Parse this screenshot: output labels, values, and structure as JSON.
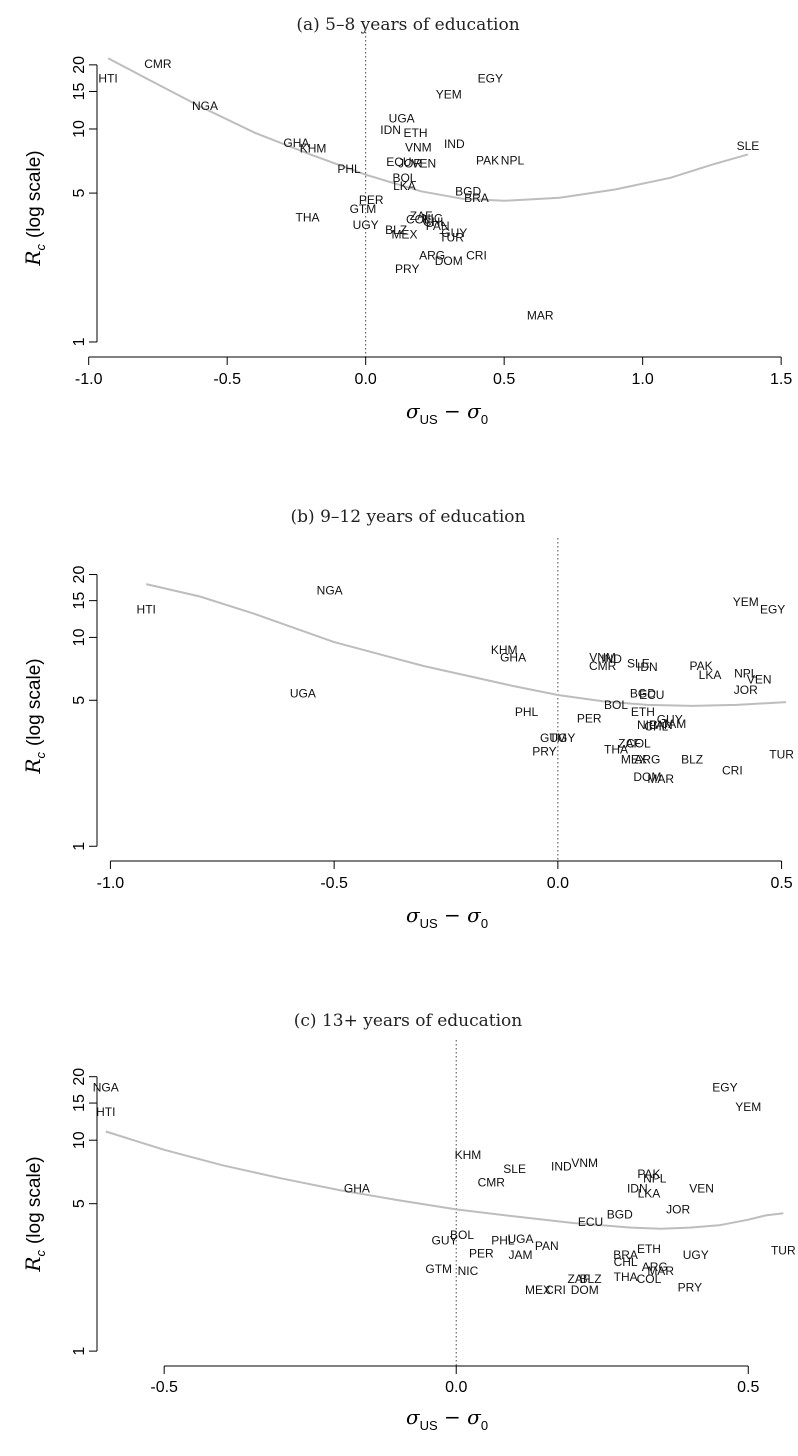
{
  "figure": {
    "y_label": {
      "sym": "R",
      "sub": "c",
      "rest": "(log scale)"
    },
    "x_label": {
      "sym1": "σ",
      "sub1": "US",
      "op": " − ",
      "sym2": "σ",
      "sub2": "0"
    }
  },
  "chart_data": [
    {
      "type": "scatter",
      "title": "(a) 5–8 years of education",
      "xlim": [
        -0.97,
        1.55
      ],
      "ylim": [
        0.85,
        24
      ],
      "y_scale": "log",
      "x_ticks": [
        -1.0,
        -0.5,
        0.0,
        0.5,
        1.0,
        1.5
      ],
      "x_tick_labels": [
        "-1.0",
        "-0.5",
        "0.0",
        "0.5",
        "1.0",
        "1.5"
      ],
      "y_ticks": [
        1,
        5,
        10,
        15,
        20
      ],
      "y_tick_labels": [
        "1",
        "5",
        "10",
        "15",
        "20"
      ],
      "reference_line_x": 0,
      "points": [
        {
          "label": "HTI",
          "x": -0.93,
          "y": 17.3
        },
        {
          "label": "CMR",
          "x": -0.75,
          "y": 20.2
        },
        {
          "label": "NGA",
          "x": -0.58,
          "y": 12.8
        },
        {
          "label": "GHA",
          "x": -0.25,
          "y": 8.6
        },
        {
          "label": "KHM",
          "x": -0.19,
          "y": 8.1
        },
        {
          "label": "THA",
          "x": -0.21,
          "y": 3.85
        },
        {
          "label": "PHL",
          "x": -0.06,
          "y": 6.5
        },
        {
          "label": "PER",
          "x": 0.02,
          "y": 4.65
        },
        {
          "label": "GTM",
          "x": -0.01,
          "y": 4.2
        },
        {
          "label": "UGY",
          "x": 0.0,
          "y": 3.55
        },
        {
          "label": "BLZ",
          "x": 0.11,
          "y": 3.35
        },
        {
          "label": "MEX",
          "x": 0.14,
          "y": 3.2
        },
        {
          "label": "UGA",
          "x": 0.13,
          "y": 11.2
        },
        {
          "label": "IDN",
          "x": 0.09,
          "y": 9.9
        },
        {
          "label": "ETH",
          "x": 0.18,
          "y": 9.6
        },
        {
          "label": "VNM",
          "x": 0.19,
          "y": 8.2
        },
        {
          "label": "IND",
          "x": 0.32,
          "y": 8.5
        },
        {
          "label": "ECU",
          "x": 0.12,
          "y": 7.0
        },
        {
          "label": "JOR",
          "x": 0.16,
          "y": 6.9
        },
        {
          "label": "VEN",
          "x": 0.21,
          "y": 6.9
        },
        {
          "label": "BOL",
          "x": 0.14,
          "y": 5.9
        },
        {
          "label": "LKA",
          "x": 0.14,
          "y": 5.4
        },
        {
          "label": "ZAF",
          "x": 0.2,
          "y": 3.9
        },
        {
          "label": "COL",
          "x": 0.19,
          "y": 3.75
        },
        {
          "label": "NIC",
          "x": 0.24,
          "y": 3.8
        },
        {
          "label": "CHL",
          "x": 0.25,
          "y": 3.65
        },
        {
          "label": "PAN",
          "x": 0.26,
          "y": 3.5
        },
        {
          "label": "GUY",
          "x": 0.32,
          "y": 3.25
        },
        {
          "label": "TUR",
          "x": 0.31,
          "y": 3.1
        },
        {
          "label": "ARG",
          "x": 0.24,
          "y": 2.55
        },
        {
          "label": "DOM",
          "x": 0.3,
          "y": 2.4
        },
        {
          "label": "CRI",
          "x": 0.4,
          "y": 2.55
        },
        {
          "label": "PRY",
          "x": 0.15,
          "y": 2.2
        },
        {
          "label": "MAR",
          "x": 0.63,
          "y": 1.33
        },
        {
          "label": "YEM",
          "x": 0.3,
          "y": 14.5
        },
        {
          "label": "EGY",
          "x": 0.45,
          "y": 17.3
        },
        {
          "label": "PAK",
          "x": 0.44,
          "y": 7.1
        },
        {
          "label": "NPL",
          "x": 0.53,
          "y": 7.1
        },
        {
          "label": "BGD",
          "x": 0.37,
          "y": 5.1
        },
        {
          "label": "BRA",
          "x": 0.4,
          "y": 4.75
        },
        {
          "label": "SLE",
          "x": 1.38,
          "y": 8.3
        }
      ],
      "trend": {
        "x": [
          -0.93,
          -0.8,
          -0.6,
          -0.4,
          -0.2,
          0.0,
          0.2,
          0.35,
          0.5,
          0.7,
          0.9,
          1.1,
          1.25,
          1.38
        ],
        "y": [
          21.5,
          17.5,
          12.8,
          9.6,
          7.6,
          6.1,
          5.1,
          4.7,
          4.6,
          4.75,
          5.2,
          5.9,
          6.8,
          7.6
        ]
      }
    },
    {
      "type": "scatter",
      "title": "(b) 9–12 years of education",
      "xlim": [
        -1.03,
        0.53
      ],
      "ylim": [
        0.85,
        24
      ],
      "y_scale": "log",
      "x_ticks": [
        -1.0,
        -0.5,
        0.0,
        0.5
      ],
      "x_tick_labels": [
        "-1.0",
        "-0.5",
        "0.0",
        "0.5"
      ],
      "y_ticks": [
        1,
        5,
        10,
        15,
        20
      ],
      "y_tick_labels": [
        "1",
        "5",
        "10",
        "15",
        "20"
      ],
      "reference_line_x": 0,
      "points": [
        {
          "label": "HTI",
          "x": -0.92,
          "y": 13.6
        },
        {
          "label": "NGA",
          "x": -0.51,
          "y": 16.8
        },
        {
          "label": "KHM",
          "x": -0.12,
          "y": 8.7
        },
        {
          "label": "GHA",
          "x": -0.1,
          "y": 8.0
        },
        {
          "label": "UGA",
          "x": -0.57,
          "y": 5.4
        },
        {
          "label": "PHL",
          "x": -0.07,
          "y": 4.4
        },
        {
          "label": "GTM",
          "x": -0.01,
          "y": 3.3
        },
        {
          "label": "UGY",
          "x": 0.01,
          "y": 3.3
        },
        {
          "label": "PRY",
          "x": -0.03,
          "y": 2.85
        },
        {
          "label": "PER",
          "x": 0.07,
          "y": 4.1
        },
        {
          "label": "BOL",
          "x": 0.13,
          "y": 4.75
        },
        {
          "label": "ETH",
          "x": 0.19,
          "y": 4.4
        },
        {
          "label": "BGD",
          "x": 0.19,
          "y": 5.4
        },
        {
          "label": "ECU",
          "x": 0.21,
          "y": 5.3
        },
        {
          "label": "VNM",
          "x": 0.1,
          "y": 8.0
        },
        {
          "label": "IND",
          "x": 0.12,
          "y": 7.9
        },
        {
          "label": "CMR",
          "x": 0.1,
          "y": 7.3
        },
        {
          "label": "SLE",
          "x": 0.18,
          "y": 7.5
        },
        {
          "label": "IDN",
          "x": 0.2,
          "y": 7.2
        },
        {
          "label": "PAK",
          "x": 0.32,
          "y": 7.3
        },
        {
          "label": "LKA",
          "x": 0.34,
          "y": 6.6
        },
        {
          "label": "NPL",
          "x": 0.42,
          "y": 6.7
        },
        {
          "label": "VEN",
          "x": 0.45,
          "y": 6.3
        },
        {
          "label": "JOR",
          "x": 0.42,
          "y": 5.6
        },
        {
          "label": "YEM",
          "x": 0.42,
          "y": 14.8
        },
        {
          "label": "EGY",
          "x": 0.48,
          "y": 13.6
        },
        {
          "label": "NIC",
          "x": 0.2,
          "y": 3.8
        },
        {
          "label": "PAN",
          "x": 0.23,
          "y": 3.8
        },
        {
          "label": "CHL",
          "x": 0.22,
          "y": 3.75
        },
        {
          "label": "JAM",
          "x": 0.26,
          "y": 3.85
        },
        {
          "label": "GUY",
          "x": 0.25,
          "y": 4.05
        },
        {
          "label": "THA",
          "x": 0.13,
          "y": 2.9
        },
        {
          "label": "ZAF",
          "x": 0.16,
          "y": 3.1
        },
        {
          "label": "COL",
          "x": 0.18,
          "y": 3.1
        },
        {
          "label": "MEX",
          "x": 0.17,
          "y": 2.6
        },
        {
          "label": "ARG",
          "x": 0.2,
          "y": 2.6
        },
        {
          "label": "BLZ",
          "x": 0.3,
          "y": 2.6
        },
        {
          "label": "DOM",
          "x": 0.2,
          "y": 2.15
        },
        {
          "label": "MAR",
          "x": 0.23,
          "y": 2.1
        },
        {
          "label": "CRI",
          "x": 0.39,
          "y": 2.3
        },
        {
          "label": "TUR",
          "x": 0.5,
          "y": 2.75
        }
      ],
      "trend": {
        "x": [
          -0.92,
          -0.8,
          -0.68,
          -0.5,
          -0.3,
          -0.1,
          0.0,
          0.1,
          0.2,
          0.3,
          0.4,
          0.51
        ],
        "y": [
          18.0,
          15.7,
          13.0,
          9.5,
          7.3,
          5.85,
          5.3,
          4.95,
          4.75,
          4.7,
          4.75,
          4.9
        ]
      }
    },
    {
      "type": "scatter",
      "title": "(c) 13+ years of education",
      "xlim": [
        -0.615,
        0.58
      ],
      "ylim": [
        0.85,
        24
      ],
      "y_scale": "log",
      "x_ticks": [
        -0.5,
        0.0,
        0.5
      ],
      "x_tick_labels": [
        "-0.5",
        "0.0",
        "0.5"
      ],
      "y_ticks": [
        1,
        5,
        10,
        15,
        20
      ],
      "y_tick_labels": [
        "1",
        "5",
        "10",
        "15",
        "20"
      ],
      "reference_line_x": 0,
      "points": [
        {
          "label": "NGA",
          "x": -0.6,
          "y": 17.8
        },
        {
          "label": "HTI",
          "x": -0.6,
          "y": 13.6
        },
        {
          "label": "GHA",
          "x": -0.17,
          "y": 5.9
        },
        {
          "label": "KHM",
          "x": 0.02,
          "y": 8.5
        },
        {
          "label": "SLE",
          "x": 0.1,
          "y": 7.3
        },
        {
          "label": "CMR",
          "x": 0.06,
          "y": 6.3
        },
        {
          "label": "IND",
          "x": 0.18,
          "y": 7.5
        },
        {
          "label": "VNM",
          "x": 0.22,
          "y": 7.8
        },
        {
          "label": "PAK",
          "x": 0.33,
          "y": 6.9
        },
        {
          "label": "NPL",
          "x": 0.34,
          "y": 6.6
        },
        {
          "label": "IDN",
          "x": 0.31,
          "y": 5.9
        },
        {
          "label": "LKA",
          "x": 0.33,
          "y": 5.6
        },
        {
          "label": "VEN",
          "x": 0.42,
          "y": 5.9
        },
        {
          "label": "JOR",
          "x": 0.38,
          "y": 4.7
        },
        {
          "label": "BGD",
          "x": 0.28,
          "y": 4.45
        },
        {
          "label": "ECU",
          "x": 0.23,
          "y": 4.1
        },
        {
          "label": "EGY",
          "x": 0.46,
          "y": 17.8
        },
        {
          "label": "YEM",
          "x": 0.5,
          "y": 14.4
        },
        {
          "label": "BOL",
          "x": 0.01,
          "y": 3.55
        },
        {
          "label": "GUY",
          "x": -0.02,
          "y": 3.35
        },
        {
          "label": "PHL",
          "x": 0.08,
          "y": 3.35
        },
        {
          "label": "UGA",
          "x": 0.11,
          "y": 3.4
        },
        {
          "label": "PAN",
          "x": 0.155,
          "y": 3.15
        },
        {
          "label": "PER",
          "x": 0.043,
          "y": 2.9
        },
        {
          "label": "JAM",
          "x": 0.11,
          "y": 2.85
        },
        {
          "label": "GTM",
          "x": -0.03,
          "y": 2.45
        },
        {
          "label": "NIC",
          "x": 0.02,
          "y": 2.4
        },
        {
          "label": "ETH",
          "x": 0.33,
          "y": 3.05
        },
        {
          "label": "BRA",
          "x": 0.29,
          "y": 2.85
        },
        {
          "label": "CHL",
          "x": 0.29,
          "y": 2.65
        },
        {
          "label": "UGY",
          "x": 0.41,
          "y": 2.85
        },
        {
          "label": "ARG",
          "x": 0.34,
          "y": 2.5
        },
        {
          "label": "MAR",
          "x": 0.35,
          "y": 2.4
        },
        {
          "label": "THA",
          "x": 0.29,
          "y": 2.25
        },
        {
          "label": "COL",
          "x": 0.33,
          "y": 2.2
        },
        {
          "label": "ZAF",
          "x": 0.21,
          "y": 2.2
        },
        {
          "label": "BLZ",
          "x": 0.23,
          "y": 2.2
        },
        {
          "label": "MEX",
          "x": 0.14,
          "y": 1.95
        },
        {
          "label": "CRI",
          "x": 0.17,
          "y": 1.95
        },
        {
          "label": "DOM",
          "x": 0.22,
          "y": 1.95
        },
        {
          "label": "PRY",
          "x": 0.4,
          "y": 2.0
        },
        {
          "label": "TUR",
          "x": 0.56,
          "y": 3.0
        }
      ],
      "trend": {
        "x": [
          -0.6,
          -0.5,
          -0.4,
          -0.3,
          -0.2,
          -0.1,
          0.0,
          0.1,
          0.2,
          0.3,
          0.35,
          0.4,
          0.45,
          0.5,
          0.53,
          0.56
        ],
        "y": [
          11.0,
          9.0,
          7.6,
          6.6,
          5.8,
          5.2,
          4.7,
          4.35,
          4.05,
          3.85,
          3.8,
          3.85,
          3.95,
          4.2,
          4.4,
          4.5
        ]
      }
    }
  ]
}
